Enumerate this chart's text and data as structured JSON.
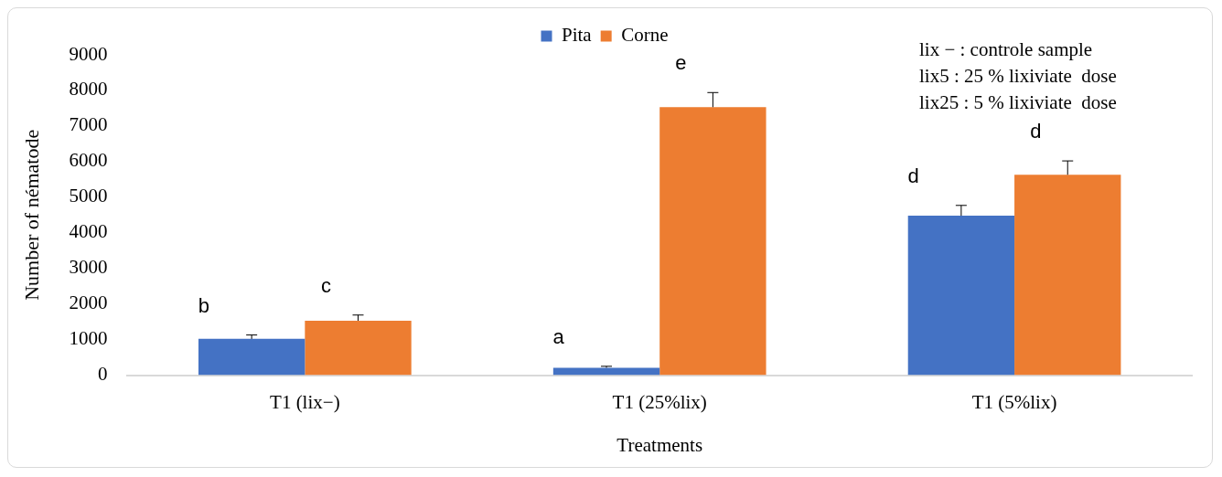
{
  "chart_data": {
    "type": "bar",
    "xlabel": "Treatments",
    "ylabel": "Number of nématode",
    "categories": [
      "T1 (lix−)",
      "T1 (25%lix)",
      "T1 (5%lix)"
    ],
    "series": [
      {
        "name": "Pita",
        "color": "#4472c4",
        "values": [
          1020,
          210,
          4480
        ],
        "errors": [
          [
            1020,
            1130
          ],
          [
            210,
            250
          ],
          [
            4480,
            4770
          ]
        ]
      },
      {
        "name": "Corne",
        "color": "#ed7d31",
        "values": [
          1530,
          7530,
          5630
        ],
        "errors": [
          [
            1530,
            1690
          ],
          [
            7530,
            7940
          ],
          [
            5630,
            6020
          ]
        ]
      }
    ],
    "ylim": [
      0,
      9000
    ],
    "yticks": [
      0,
      1000,
      2000,
      3000,
      4000,
      5000,
      6000,
      7000,
      8000,
      9000
    ],
    "grid": false,
    "legend": "top",
    "annotations": [
      "lix − : controle sample\nlix5 : 25 % lixiviate  dose\nlix25 : 5 % lixiviate  dose",
      "b",
      "c",
      "a",
      "e",
      "d",
      "d"
    ]
  }
}
